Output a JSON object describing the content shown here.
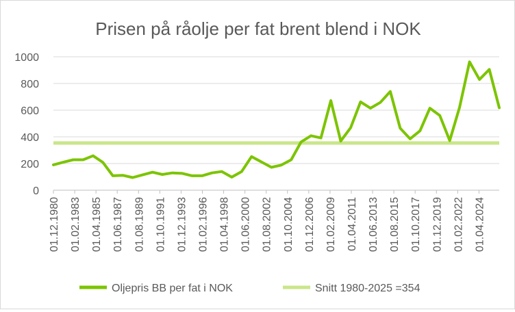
{
  "chart_data": {
    "type": "line",
    "title": "Prisen på råolje per fat brent blend i NOK",
    "xlabel": "",
    "ylabel": "",
    "ylim": [
      0,
      1000
    ],
    "yticks": [
      0,
      200,
      400,
      600,
      800,
      1000
    ],
    "grid": true,
    "legend_position": "bottom",
    "xtick_labels": [
      "01.12.1980",
      "01.02.1983",
      "01.04.1985",
      "01.06.1987",
      "01.08.1989",
      "01.10.1991",
      "01.12.1993",
      "01.02.1996",
      "01.04.1998",
      "01.06.2000",
      "01.08.2002",
      "01.10.2004",
      "01.12.2006",
      "01.02.2009",
      "01.04.2011",
      "01.06.2013",
      "01.08.2015",
      "01.10.2017",
      "01.12.2019",
      "01.02.2022",
      "01.04.2024"
    ],
    "series": [
      {
        "name": "Oljepris BB per fat i NOK",
        "color": "#7cc400",
        "values": [
          190,
          210,
          228,
          228,
          258,
          208,
          108,
          112,
          95,
          115,
          135,
          118,
          130,
          126,
          108,
          108,
          130,
          140,
          98,
          140,
          252,
          212,
          172,
          188,
          228,
          362,
          408,
          392,
          672,
          368,
          468,
          662,
          615,
          658,
          740,
          465,
          385,
          445,
          615,
          560,
          372,
          622,
          962,
          830,
          905,
          618
        ]
      },
      {
        "name": "Snitt 1980-2025 =354",
        "color": "#c9e68a",
        "constant": 354
      }
    ]
  }
}
